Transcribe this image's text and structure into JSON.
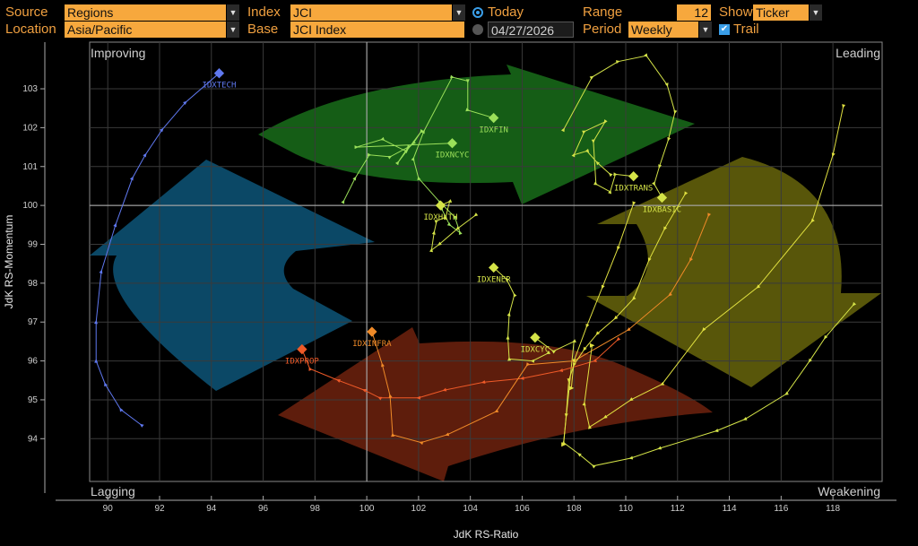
{
  "controls": {
    "source_label": "Source",
    "source_value": "Regions",
    "location_label": "Location",
    "location_value": "Asia/Pacific",
    "index_label": "Index",
    "index_value": "JCI",
    "base_label": "Base",
    "base_value": "JCI Index",
    "today_label": "Today",
    "date_value": "04/27/2026",
    "range_label": "Range",
    "range_value": "12",
    "period_label": "Period",
    "period_value": "Weekly",
    "show_label": "Show",
    "show_value": "Ticker",
    "trail_label": "Trail"
  },
  "chart_data": {
    "type": "scatter",
    "subtype": "relative-rotation-graph",
    "xlabel": "JdK RS-Ratio",
    "ylabel": "JdK RS-Momentum",
    "xlim": [
      89.3,
      119.9
    ],
    "ylim": [
      92.9,
      104.2
    ],
    "xticks": [
      90,
      92,
      94,
      96,
      98,
      100,
      102,
      104,
      106,
      108,
      110,
      112,
      114,
      116,
      118
    ],
    "yticks": [
      94,
      95,
      96,
      97,
      98,
      99,
      100,
      101,
      102,
      103
    ],
    "center": [
      100,
      100
    ],
    "quadrants": {
      "top_left": "Improving",
      "top_right": "Leading",
      "bottom_left": "Lagging",
      "bottom_right": "Weakening"
    },
    "quadrant_colors": {
      "improving": "#0b4866",
      "leading": "#155d16",
      "weakening": "#58560a",
      "lagging": "#5e1d0c"
    },
    "series": [
      {
        "name": "IDXTECH",
        "color": "#5f78ef",
        "points": [
          [
            91.3,
            94.35
          ],
          [
            90.5,
            94.75
          ],
          [
            89.9,
            95.4
          ],
          [
            89.55,
            96.0
          ],
          [
            89.55,
            97.0
          ],
          [
            89.75,
            98.3
          ],
          [
            90.3,
            99.5
          ],
          [
            90.95,
            100.7
          ],
          [
            91.45,
            101.3
          ],
          [
            92.1,
            101.95
          ],
          [
            93.0,
            102.65
          ],
          [
            94.3,
            103.4
          ]
        ]
      },
      {
        "name": "IDXFIN",
        "color": "#9be05a",
        "points": [
          [
            102.9,
            99.9
          ],
          [
            103.2,
            99.5
          ],
          [
            103.6,
            99.3
          ],
          [
            103.4,
            99.7
          ],
          [
            102.8,
            100.1
          ],
          [
            102.0,
            100.7
          ],
          [
            101.8,
            101.2
          ],
          [
            102.2,
            101.9
          ],
          [
            103.3,
            103.3
          ],
          [
            103.9,
            103.2
          ],
          [
            103.9,
            102.45
          ],
          [
            104.9,
            102.25
          ]
        ]
      },
      {
        "name": "IDXNCYC",
        "color": "#9be05a",
        "points": [
          [
            99.1,
            100.1
          ],
          [
            99.55,
            100.7
          ],
          [
            100.1,
            101.3
          ],
          [
            100.9,
            101.25
          ],
          [
            101.6,
            101.5
          ],
          [
            101.2,
            101.1
          ],
          [
            102.1,
            101.9
          ],
          [
            101.8,
            101.6
          ],
          [
            101.5,
            101.4
          ],
          [
            100.6,
            101.7
          ],
          [
            99.6,
            101.5
          ],
          [
            103.3,
            101.6
          ]
        ]
      },
      {
        "name": "IDXTRANS",
        "color": "#d4e348",
        "points": [
          [
            109.4,
            100.8
          ],
          [
            108.9,
            101.1
          ],
          [
            108.5,
            101.4
          ],
          [
            108.0,
            101.3
          ],
          [
            108.4,
            101.9
          ],
          [
            109.2,
            102.15
          ],
          [
            108.75,
            101.65
          ],
          [
            108.85,
            100.55
          ],
          [
            109.4,
            100.35
          ],
          [
            109.6,
            100.8
          ],
          [
            110.3,
            100.75
          ]
        ]
      },
      {
        "name": "IDXBASIC",
        "color": "#d4e348",
        "points": [
          [
            107.6,
            101.95
          ],
          [
            108.7,
            103.3
          ],
          [
            109.7,
            103.7
          ],
          [
            110.8,
            103.85
          ],
          [
            111.6,
            103.1
          ],
          [
            111.9,
            102.4
          ],
          [
            111.65,
            101.7
          ],
          [
            111.3,
            101.0
          ],
          [
            111.1,
            100.55
          ],
          [
            111.4,
            100.2
          ]
        ]
      },
      {
        "name": "IDXHLTH",
        "color": "#d4e348",
        "points": [
          [
            104.2,
            99.75
          ],
          [
            103.5,
            99.4
          ],
          [
            102.8,
            99.0
          ],
          [
            102.5,
            98.85
          ],
          [
            102.6,
            99.3
          ],
          [
            102.7,
            99.6
          ],
          [
            103.05,
            99.7
          ],
          [
            103.2,
            100.1
          ],
          [
            102.85,
            100.0
          ]
        ]
      },
      {
        "name": "IDXENER",
        "color": "#d4e348",
        "points": [
          [
            107.0,
            96.2
          ],
          [
            106.4,
            96.0
          ],
          [
            105.5,
            96.05
          ],
          [
            105.45,
            96.6
          ],
          [
            105.5,
            97.2
          ],
          [
            105.7,
            97.7
          ],
          [
            105.4,
            98.1
          ],
          [
            104.9,
            98.4
          ]
        ]
      },
      {
        "name": "IDXCYC",
        "color": "#d4e348",
        "points": [
          [
            118.8,
            97.45
          ],
          [
            117.7,
            96.6
          ],
          [
            117.1,
            96.0
          ],
          [
            116.2,
            95.15
          ],
          [
            114.6,
            94.5
          ],
          [
            113.5,
            94.2
          ],
          [
            111.3,
            93.75
          ],
          [
            110.2,
            93.5
          ],
          [
            108.75,
            93.3
          ],
          [
            108.2,
            93.6
          ],
          [
            107.6,
            93.9
          ],
          [
            108.0,
            96.5
          ],
          [
            107.2,
            96.25
          ],
          [
            106.5,
            96.6
          ]
        ]
      },
      {
        "name": "IDXPROP",
        "color": "#ef5a28",
        "points": [
          [
            109.7,
            96.55
          ],
          [
            108.8,
            96.0
          ],
          [
            107.5,
            95.75
          ],
          [
            106.0,
            95.55
          ],
          [
            104.5,
            95.45
          ],
          [
            103.0,
            95.25
          ],
          [
            102.0,
            95.05
          ],
          [
            100.5,
            95.05
          ],
          [
            99.9,
            95.25
          ],
          [
            98.9,
            95.5
          ],
          [
            97.8,
            95.8
          ],
          [
            97.5,
            96.3
          ]
        ]
      },
      {
        "name": "IDXINFRA",
        "color": "#ef8a28",
        "points": [
          [
            113.2,
            99.75
          ],
          [
            112.5,
            98.6
          ],
          [
            111.7,
            97.7
          ],
          [
            110.1,
            96.8
          ],
          [
            108.0,
            96.0
          ],
          [
            106.2,
            95.9
          ],
          [
            105.0,
            94.7
          ],
          [
            103.1,
            94.1
          ],
          [
            102.1,
            93.9
          ],
          [
            101.0,
            94.1
          ],
          [
            100.9,
            95.1
          ],
          [
            100.6,
            95.9
          ],
          [
            100.2,
            96.75
          ]
        ]
      },
      {
        "name": "",
        "color": "#e0e040",
        "points": [
          [
            118.4,
            102.55
          ],
          [
            118.0,
            101.3
          ],
          [
            117.2,
            99.6
          ],
          [
            115.1,
            97.9
          ],
          [
            113.0,
            96.8
          ],
          [
            111.4,
            95.4
          ],
          [
            110.2,
            95.0
          ],
          [
            109.2,
            94.55
          ],
          [
            108.6,
            94.3
          ],
          [
            108.4,
            94.9
          ],
          [
            108.7,
            96.4
          ]
        ]
      },
      {
        "name": "",
        "color": "#e0e040",
        "points": [
          [
            112.3,
            100.3
          ],
          [
            111.5,
            99.4
          ],
          [
            110.9,
            98.6
          ],
          [
            110.3,
            97.6
          ],
          [
            109.6,
            97.1
          ],
          [
            108.9,
            96.7
          ],
          [
            108.4,
            96.3
          ],
          [
            108.0,
            95.9
          ],
          [
            107.8,
            95.5
          ],
          [
            107.7,
            94.6
          ],
          [
            107.6,
            93.85
          ]
        ]
      },
      {
        "name": "",
        "color": "#e0e040",
        "points": [
          [
            110.3,
            100.05
          ],
          [
            109.7,
            98.9
          ],
          [
            109.1,
            97.9
          ],
          [
            108.5,
            96.9
          ],
          [
            108.0,
            96.0
          ],
          [
            107.9,
            95.3
          ]
        ]
      }
    ]
  }
}
